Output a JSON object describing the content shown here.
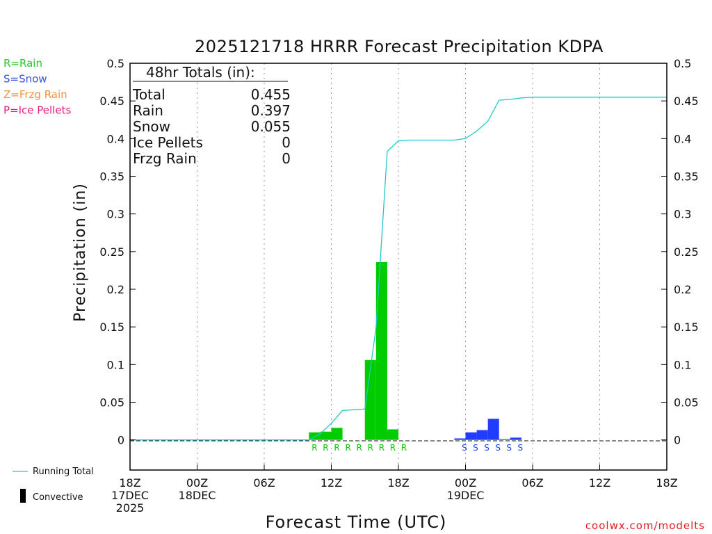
{
  "chart_data": {
    "type": "bar",
    "title": "2025121718 HRRR Forecast Precipitation KDPA",
    "xlabel": "Forecast Time (UTC)",
    "ylabel": "Precipitation (in)",
    "ylim": [
      -0.04,
      0.5
    ],
    "xlim_hours": [
      0,
      48
    ],
    "y_ticks": [
      "0.5",
      "0.45",
      "0.4",
      "0.35",
      "0.3",
      "0.25",
      "0.2",
      "0.15",
      "0.1",
      "0.05",
      "0"
    ],
    "y_tick_values": [
      0.5,
      0.45,
      0.4,
      0.35,
      0.3,
      0.25,
      0.2,
      0.15,
      0.1,
      0.05,
      0
    ],
    "x_ticks": [
      {
        "hour": 0,
        "lines": [
          "18Z",
          "17DEC",
          "2025"
        ]
      },
      {
        "hour": 6,
        "lines": [
          "00Z",
          "18DEC"
        ]
      },
      {
        "hour": 12,
        "lines": [
          "06Z"
        ]
      },
      {
        "hour": 18,
        "lines": [
          "12Z"
        ]
      },
      {
        "hour": 24,
        "lines": [
          "18Z"
        ]
      },
      {
        "hour": 30,
        "lines": [
          "00Z",
          "19DEC"
        ]
      },
      {
        "hour": 36,
        "lines": [
          "06Z"
        ]
      },
      {
        "hour": 42,
        "lines": [
          "12Z"
        ]
      },
      {
        "hour": 48,
        "lines": [
          "18Z"
        ]
      }
    ],
    "grid": "vertical-dotted",
    "series": [
      {
        "name": "Rain",
        "color": "#00cc00",
        "hours": [
          17,
          18,
          19,
          20,
          21,
          22,
          23,
          24,
          25
        ],
        "values": [
          0.01,
          0.011,
          0.016,
          0.0,
          0.0,
          0.106,
          0.236,
          0.014,
          0.0
        ]
      },
      {
        "name": "Snow",
        "color": "#1f3cff",
        "hours": [
          30,
          31,
          32,
          33,
          34,
          35
        ],
        "values": [
          0.002,
          0.01,
          0.013,
          0.028,
          0.001,
          0.003
        ]
      }
    ],
    "running_total": {
      "name": "Running Total",
      "color": "#22c8c8",
      "hours": [
        0,
        16,
        17,
        18,
        19,
        20,
        21,
        22,
        23,
        24,
        25,
        26,
        27,
        28,
        29,
        30,
        31,
        32,
        33,
        34,
        35,
        36,
        40,
        44,
        48
      ],
      "values": [
        0,
        0,
        0.008,
        0.022,
        0.039,
        0.04,
        0.041,
        0.149,
        0.383,
        0.397,
        0.398,
        0.398,
        0.398,
        0.398,
        0.398,
        0.4,
        0.41,
        0.423,
        0.451,
        0.452,
        0.454,
        0.455,
        0.455,
        0.455,
        0.455
      ]
    },
    "ptype_markers": [
      {
        "hour": 16.5,
        "label": "R",
        "color": "#00cc00"
      },
      {
        "hour": 17.5,
        "label": "R",
        "color": "#00cc00"
      },
      {
        "hour": 18.5,
        "label": "R",
        "color": "#00cc00"
      },
      {
        "hour": 19.5,
        "label": "R",
        "color": "#00cc00"
      },
      {
        "hour": 20.5,
        "label": "R",
        "color": "#00cc00"
      },
      {
        "hour": 21.5,
        "label": "R",
        "color": "#00cc00"
      },
      {
        "hour": 22.5,
        "label": "R",
        "color": "#00cc00"
      },
      {
        "hour": 23.5,
        "label": "R",
        "color": "#00cc00"
      },
      {
        "hour": 24.5,
        "label": "R",
        "color": "#00cc00"
      },
      {
        "hour": 29.9,
        "label": "S",
        "color": "#1f3cff"
      },
      {
        "hour": 30.9,
        "label": "S",
        "color": "#1f3cff"
      },
      {
        "hour": 31.9,
        "label": "S",
        "color": "#1f3cff"
      },
      {
        "hour": 32.9,
        "label": "S",
        "color": "#1f3cff"
      },
      {
        "hour": 33.9,
        "label": "S",
        "color": "#1f3cff"
      },
      {
        "hour": 34.9,
        "label": "S",
        "color": "#1f3cff"
      }
    ]
  },
  "totals_box": {
    "header": "48hr Totals (in):",
    "rows": [
      {
        "label": "Total",
        "value": "0.455"
      },
      {
        "label": "Rain",
        "value": "0.397"
      },
      {
        "label": "Snow",
        "value": "0.055"
      },
      {
        "label": "Ice Pellets",
        "value": "0"
      },
      {
        "label": "Frzg Rain",
        "value": "0"
      }
    ]
  },
  "ptype_legend": [
    {
      "text": "R=Rain",
      "color": "#22cc22"
    },
    {
      "text": "S=Snow",
      "color": "#3a4fe0"
    },
    {
      "text": "Z=Frzg Rain",
      "color": "#f09040"
    },
    {
      "text": "P=Ice Pellets",
      "color": "#e0207a"
    }
  ],
  "bottom_legend": {
    "running_total": "Running Total",
    "convective": "Convective"
  },
  "credit": "coolwx.com/modelts"
}
